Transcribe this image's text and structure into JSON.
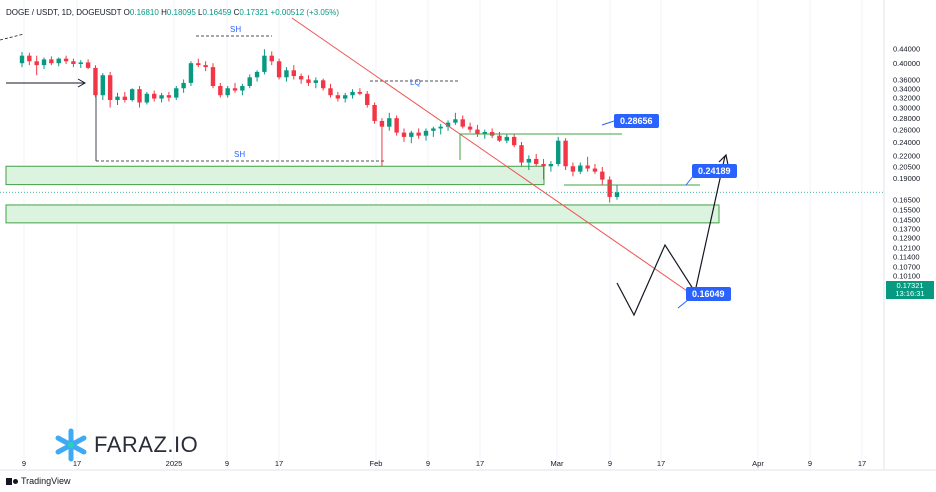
{
  "header": {
    "symbol": "DOGE / USDT, 1D, DOGEUSDT",
    "o_label": "O",
    "o_value": "0.16810",
    "h_label": "H",
    "h_value": "0.18095",
    "l_label": "L",
    "l_value": "0.16459",
    "c_label": "C",
    "c_value": "0.17321",
    "change": "+0.00512 (+3.05%)"
  },
  "branding": {
    "watermark": "FARAZ.IO",
    "platform": "TradingView"
  },
  "colors": {
    "up": "#089981",
    "down": "#f23645",
    "zone_fill": "#dcf3df",
    "zone_stroke": "#43a047",
    "trendline": "#ef5350",
    "target_line": "#43a047",
    "tag_blue": "#2962ff"
  },
  "current_price": {
    "value": "0.17321",
    "countdown": "13:16:31"
  },
  "chart_data": {
    "type": "candlestick",
    "y_scale": "log",
    "ylim": [
      0.095,
      0.45
    ],
    "y_ticks": [
      "0.44000",
      "0.40000",
      "0.36000",
      "0.34000",
      "0.32000",
      "0.30000",
      "0.28000",
      "0.26000",
      "0.24000",
      "0.22000",
      "0.20500",
      "0.19000",
      "0.17321",
      "0.16500",
      "0.15500",
      "0.14500",
      "0.13700",
      "0.12900",
      "0.12100",
      "0.11400",
      "0.10700",
      "0.10100"
    ],
    "x_ticks": [
      "9",
      "17",
      "2025",
      "9",
      "17",
      "Feb",
      "9",
      "17",
      "Mar",
      "9",
      "17",
      "Apr",
      "9",
      "17"
    ],
    "candles": [
      [
        0.4,
        0.43,
        0.39,
        0.42
      ],
      [
        0.42,
        0.428,
        0.395,
        0.405
      ],
      [
        0.405,
        0.42,
        0.37,
        0.395
      ],
      [
        0.395,
        0.415,
        0.385,
        0.41
      ],
      [
        0.41,
        0.418,
        0.395,
        0.4
      ],
      [
        0.4,
        0.415,
        0.392,
        0.412
      ],
      [
        0.412,
        0.42,
        0.398,
        0.405
      ],
      [
        0.405,
        0.412,
        0.39,
        0.398
      ],
      [
        0.398,
        0.408,
        0.388,
        0.402
      ],
      [
        0.402,
        0.41,
        0.385,
        0.388
      ],
      [
        0.388,
        0.395,
        0.32,
        0.325
      ],
      [
        0.325,
        0.375,
        0.315,
        0.37
      ],
      [
        0.37,
        0.378,
        0.3,
        0.315
      ],
      [
        0.315,
        0.33,
        0.305,
        0.322
      ],
      [
        0.322,
        0.332,
        0.31,
        0.315
      ],
      [
        0.315,
        0.34,
        0.312,
        0.338
      ],
      [
        0.338,
        0.345,
        0.3,
        0.31
      ],
      [
        0.31,
        0.332,
        0.306,
        0.328
      ],
      [
        0.328,
        0.335,
        0.312,
        0.318
      ],
      [
        0.318,
        0.33,
        0.31,
        0.325
      ],
      [
        0.325,
        0.332,
        0.312,
        0.32
      ],
      [
        0.32,
        0.345,
        0.315,
        0.34
      ],
      [
        0.34,
        0.36,
        0.33,
        0.352
      ],
      [
        0.352,
        0.405,
        0.345,
        0.4
      ],
      [
        0.4,
        0.412,
        0.39,
        0.395
      ],
      [
        0.395,
        0.405,
        0.38,
        0.39
      ],
      [
        0.39,
        0.4,
        0.34,
        0.345
      ],
      [
        0.345,
        0.352,
        0.32,
        0.325
      ],
      [
        0.325,
        0.345,
        0.32,
        0.34
      ],
      [
        0.34,
        0.352,
        0.33,
        0.335
      ],
      [
        0.335,
        0.35,
        0.325,
        0.345
      ],
      [
        0.345,
        0.372,
        0.34,
        0.365
      ],
      [
        0.365,
        0.382,
        0.355,
        0.378
      ],
      [
        0.378,
        0.438,
        0.372,
        0.42
      ],
      [
        0.42,
        0.432,
        0.395,
        0.405
      ],
      [
        0.405,
        0.412,
        0.36,
        0.365
      ],
      [
        0.365,
        0.39,
        0.355,
        0.382
      ],
      [
        0.382,
        0.395,
        0.36,
        0.368
      ],
      [
        0.368,
        0.374,
        0.35,
        0.36
      ],
      [
        0.36,
        0.37,
        0.345,
        0.352
      ],
      [
        0.352,
        0.365,
        0.34,
        0.358
      ],
      [
        0.358,
        0.362,
        0.335,
        0.34
      ],
      [
        0.34,
        0.35,
        0.32,
        0.325
      ],
      [
        0.325,
        0.332,
        0.312,
        0.318
      ],
      [
        0.318,
        0.33,
        0.31,
        0.325
      ],
      [
        0.325,
        0.338,
        0.318,
        0.332
      ],
      [
        0.332,
        0.34,
        0.325,
        0.328
      ],
      [
        0.328,
        0.334,
        0.3,
        0.305
      ],
      [
        0.305,
        0.31,
        0.27,
        0.275
      ],
      [
        0.275,
        0.28,
        0.205,
        0.265
      ],
      [
        0.265,
        0.29,
        0.258,
        0.28
      ],
      [
        0.28,
        0.285,
        0.25,
        0.255
      ],
      [
        0.255,
        0.262,
        0.24,
        0.248
      ],
      [
        0.248,
        0.258,
        0.238,
        0.255
      ],
      [
        0.255,
        0.262,
        0.245,
        0.25
      ],
      [
        0.25,
        0.262,
        0.242,
        0.258
      ],
      [
        0.258,
        0.265,
        0.248,
        0.262
      ],
      [
        0.262,
        0.27,
        0.252,
        0.265
      ],
      [
        0.265,
        0.276,
        0.258,
        0.272
      ],
      [
        0.272,
        0.29,
        0.268,
        0.278
      ],
      [
        0.278,
        0.285,
        0.262,
        0.265
      ],
      [
        0.265,
        0.272,
        0.255,
        0.26
      ],
      [
        0.26,
        0.268,
        0.248,
        0.252
      ],
      [
        0.252,
        0.26,
        0.245,
        0.256
      ],
      [
        0.256,
        0.262,
        0.246,
        0.25
      ],
      [
        0.25,
        0.256,
        0.24,
        0.242
      ],
      [
        0.242,
        0.252,
        0.238,
        0.248
      ],
      [
        0.248,
        0.252,
        0.232,
        0.235
      ],
      [
        0.235,
        0.24,
        0.205,
        0.21
      ],
      [
        0.21,
        0.22,
        0.2,
        0.215
      ],
      [
        0.215,
        0.222,
        0.205,
        0.208
      ],
      [
        0.208,
        0.215,
        0.188,
        0.205
      ],
      [
        0.205,
        0.212,
        0.198,
        0.208
      ],
      [
        0.208,
        0.248,
        0.205,
        0.242
      ],
      [
        0.242,
        0.246,
        0.2,
        0.205
      ],
      [
        0.205,
        0.21,
        0.192,
        0.198
      ],
      [
        0.198,
        0.21,
        0.195,
        0.206
      ],
      [
        0.206,
        0.218,
        0.198,
        0.202
      ],
      [
        0.202,
        0.208,
        0.195,
        0.198
      ],
      [
        0.198,
        0.204,
        0.182,
        0.188
      ],
      [
        0.188,
        0.192,
        0.162,
        0.168
      ],
      [
        0.168,
        0.181,
        0.165,
        0.173
      ]
    ],
    "zones": [
      {
        "top": 0.205,
        "bottom": 0.182
      },
      {
        "top": 0.1595,
        "bottom": 0.142
      }
    ],
    "labels": {
      "sh": "SH",
      "lq": "LQ"
    },
    "targets": [
      "0.28656",
      "0.24189",
      "0.16049"
    ]
  }
}
